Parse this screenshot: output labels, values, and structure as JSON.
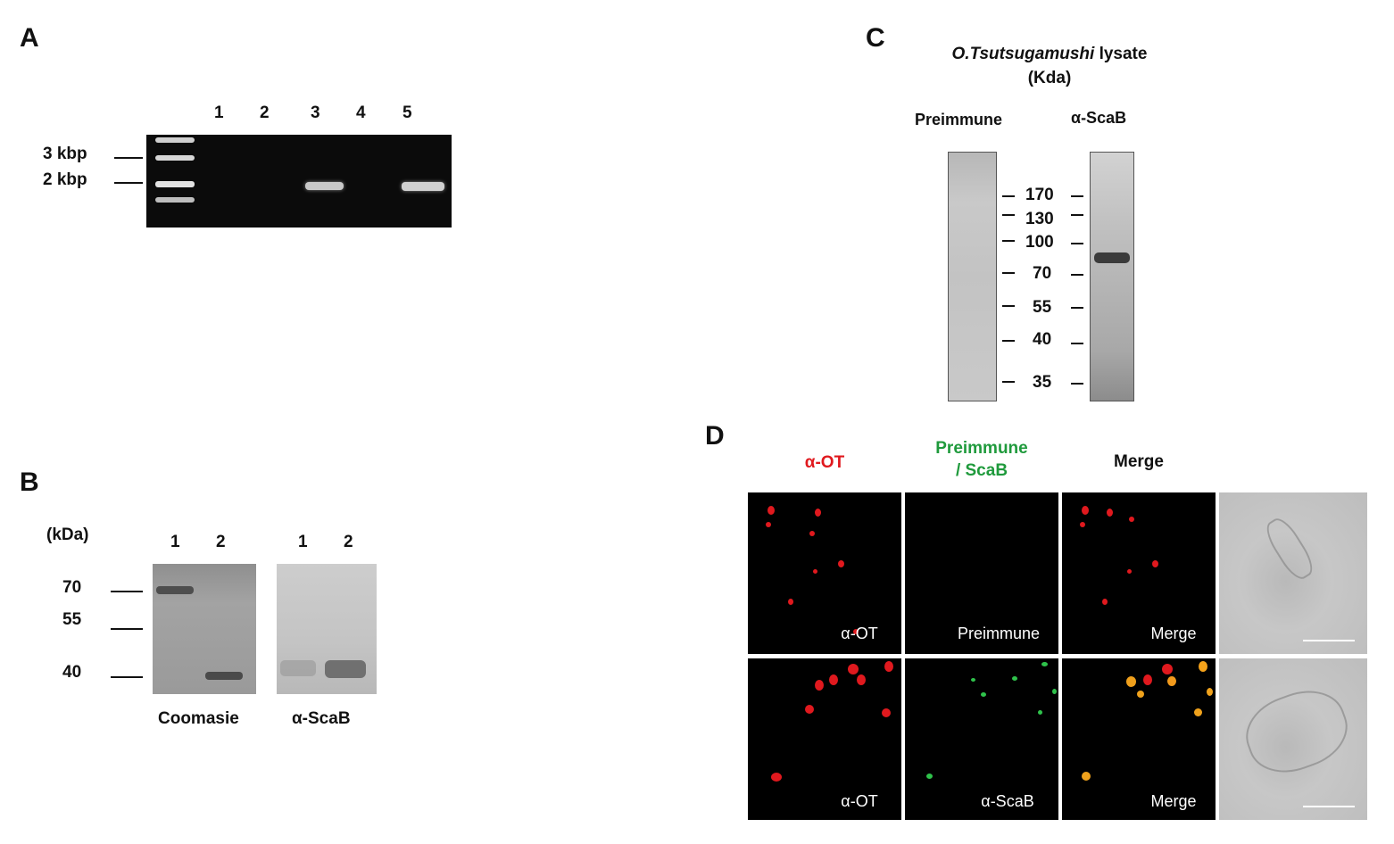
{
  "panelA": {
    "letter": "A",
    "lanes": [
      "1",
      "2",
      "3",
      "4",
      "5"
    ],
    "markers": [
      "3 kbp",
      "2 kbp"
    ]
  },
  "panelB": {
    "letter": "B",
    "unit": "(kDa)",
    "markers": [
      "70",
      "55",
      "40"
    ],
    "gel1_lanes": [
      "1",
      "2"
    ],
    "gel2_lanes": [
      "1",
      "2"
    ],
    "gel1_caption": "Coomasie",
    "gel2_caption": "α-ScaB"
  },
  "panelC": {
    "letter": "C",
    "title_italic": "O.Tsutsugamushi",
    "title_rest": " lysate",
    "unit": "(Kda)",
    "left_label": "Preimmune",
    "right_label": "α-ScaB",
    "markers": [
      "170",
      "130",
      "100",
      "70",
      "55",
      "40",
      "35"
    ]
  },
  "panelD": {
    "letter": "D",
    "col1_header": "α-OT",
    "col2_header_line1": "Preimmune",
    "col2_header_line2": "/ ScaB",
    "col3_header": "Merge",
    "row1": [
      "α-OT",
      "Preimmune",
      "Merge"
    ],
    "row2": [
      "α-OT",
      "α-ScaB",
      "Merge"
    ],
    "colors": {
      "red": "#e0191e",
      "green": "#1f9a3c"
    }
  }
}
